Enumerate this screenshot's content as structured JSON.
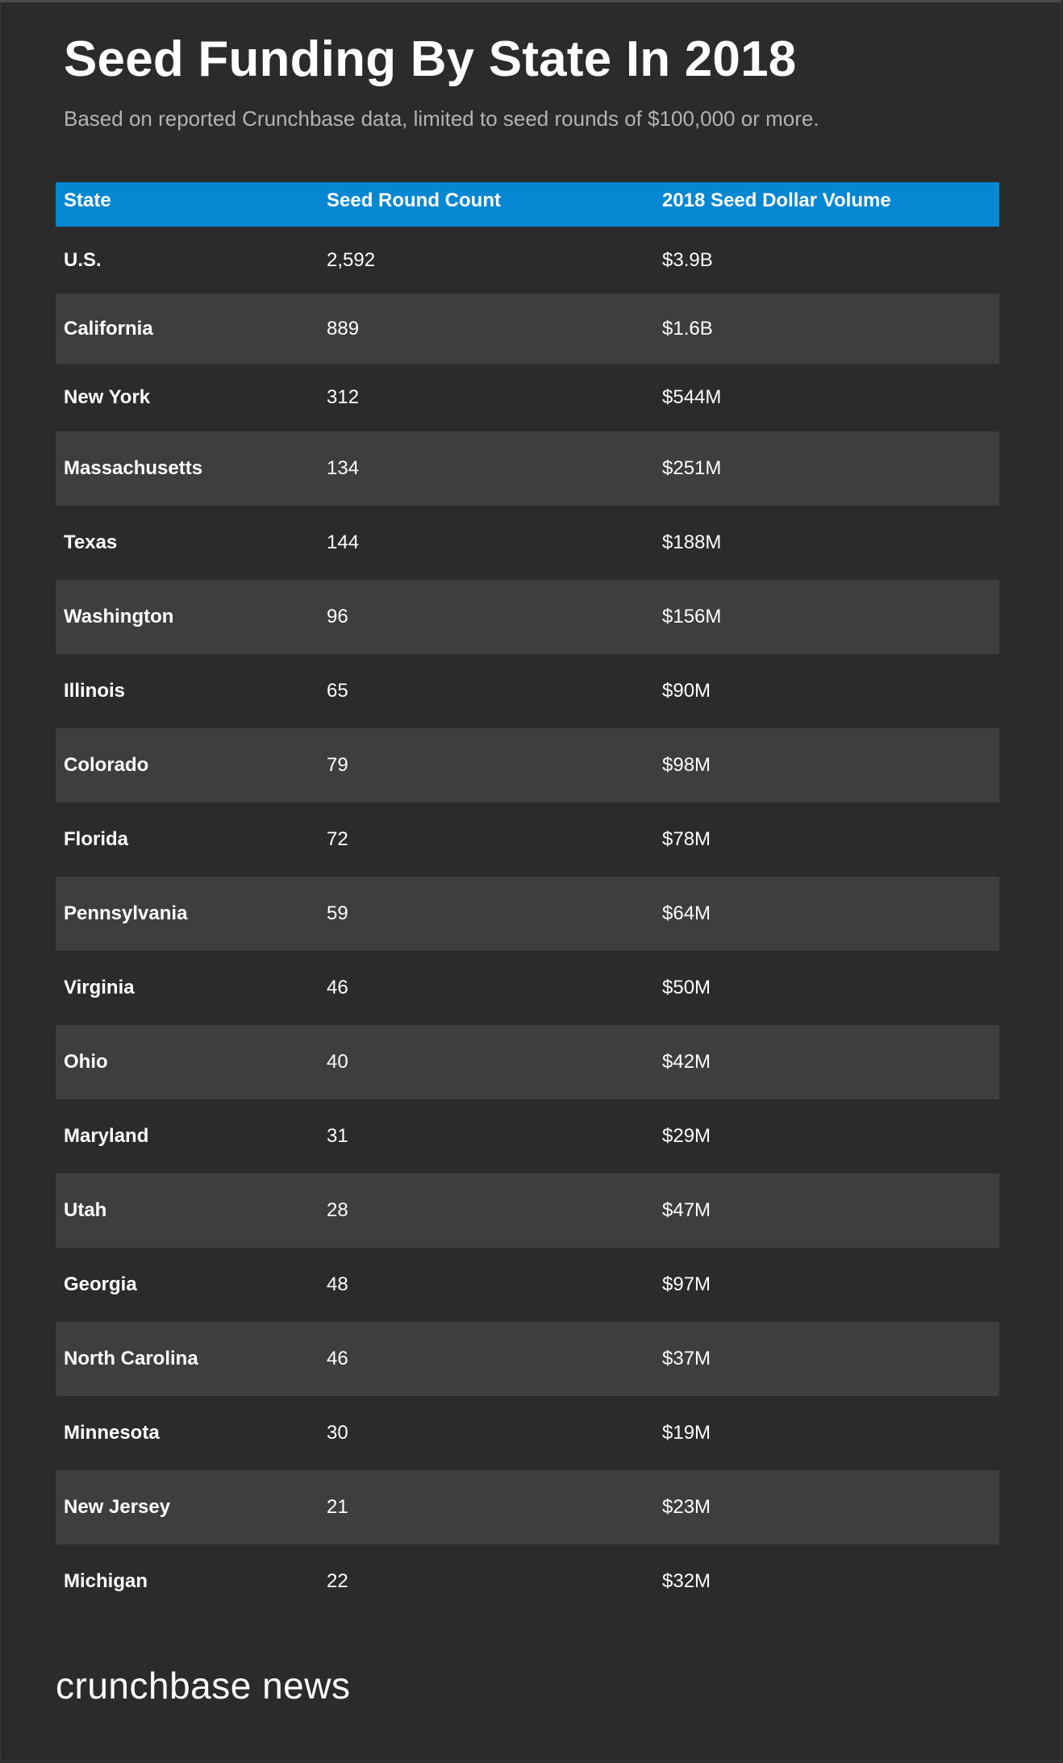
{
  "title": "Seed Funding By State In 2018",
  "subtitle": "Based on reported Crunchbase data, limited to seed rounds of $100,000 or more.",
  "logo_text": "crunchbase news",
  "colors": {
    "background": "#2b2b2b",
    "header": "#0588d1",
    "alt_row": "#3e3e3e",
    "text": "#ffffff",
    "subtitle": "#b3b3b3"
  },
  "chart_data": {
    "type": "table",
    "title": "Seed Funding By State In 2018",
    "subtitle": "Based on reported Crunchbase data, limited to seed rounds of $100,000 or more.",
    "columns": [
      "State",
      "Seed Round Count",
      "2018 Seed Dollar Volume"
    ],
    "rows": [
      [
        "U.S.",
        "2,592",
        "$3.9B"
      ],
      [
        "California",
        "889",
        "$1.6B"
      ],
      [
        "New York",
        "312",
        "$544M"
      ],
      [
        "Massachusetts",
        "134",
        "$251M"
      ],
      [
        "Texas",
        "144",
        "$188M"
      ],
      [
        "Washington",
        "96",
        "$156M"
      ],
      [
        "Illinois",
        "65",
        "$90M"
      ],
      [
        "Colorado",
        "79",
        "$98M"
      ],
      [
        "Florida",
        "72",
        "$78M"
      ],
      [
        "Pennsylvania",
        "59",
        "$64M"
      ],
      [
        "Virginia",
        "46",
        "$50M"
      ],
      [
        "Ohio",
        "40",
        "$42M"
      ],
      [
        "Maryland",
        "31",
        "$29M"
      ],
      [
        "Utah",
        "28",
        "$47M"
      ],
      [
        "Georgia",
        "48",
        "$97M"
      ],
      [
        "North Carolina",
        "46",
        "$37M"
      ],
      [
        "Minnesota",
        "30",
        "$19M"
      ],
      [
        "New Jersey",
        "21",
        "$23M"
      ],
      [
        "Michigan",
        "22",
        "$32M"
      ]
    ]
  }
}
